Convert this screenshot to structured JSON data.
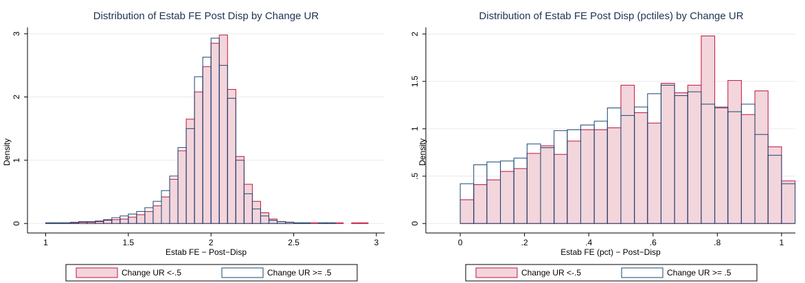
{
  "chart_data": [
    {
      "type": "histogram",
      "title": "Distribution of Estab FE Post Disp by Change UR",
      "x_label": "Estab FE − Post−Disp",
      "y_label": "Density",
      "bins": [
        1.0,
        1.05,
        1.1,
        1.15,
        1.2,
        1.25,
        1.3,
        1.35,
        1.4,
        1.45,
        1.5,
        1.55,
        1.6,
        1.65,
        1.7,
        1.75,
        1.8,
        1.85,
        1.9,
        1.95,
        2.0,
        2.05,
        2.1,
        2.15,
        2.2,
        2.25,
        2.3,
        2.35,
        2.4,
        2.45,
        2.5,
        2.55,
        2.6,
        2.65,
        2.7,
        2.75,
        2.8,
        2.85,
        2.9,
        2.95,
        3.0
      ],
      "series": [
        {
          "name": "Change UR <-.5",
          "color": "#c0143c",
          "fill": "#f3d5dc",
          "values": [
            0.01,
            0.01,
            0.01,
            0.01,
            0.02,
            0.02,
            0.03,
            0.05,
            0.06,
            0.07,
            0.1,
            0.14,
            0.19,
            0.28,
            0.42,
            0.7,
            1.15,
            1.65,
            2.08,
            2.48,
            2.85,
            2.98,
            2.12,
            1.06,
            0.62,
            0.35,
            0.17,
            0.07,
            0.03,
            0.02,
            0.01,
            0.01,
            0.01,
            0.01,
            0.01,
            0.01,
            0,
            0.01,
            0.01,
            0
          ]
        },
        {
          "name": "Change UR >= .5",
          "color": "#1a476f",
          "fill": "none",
          "values": [
            0.01,
            0.01,
            0.01,
            0.02,
            0.03,
            0.03,
            0.04,
            0.06,
            0.09,
            0.12,
            0.15,
            0.19,
            0.25,
            0.35,
            0.52,
            0.75,
            1.2,
            1.5,
            2.32,
            2.63,
            2.93,
            2.5,
            1.98,
            1.0,
            0.47,
            0.23,
            0.12,
            0.05,
            0.03,
            0.02,
            0.01,
            0.01,
            0,
            0.01,
            0.01,
            0,
            0,
            0,
            0,
            0
          ]
        }
      ],
      "xlim": [
        0.89,
        3.05
      ],
      "xticks": [
        1,
        1.5,
        2,
        2.5,
        3
      ],
      "ylim": [
        -0.15,
        3.1
      ],
      "yticks": [
        0,
        1,
        2,
        3
      ],
      "grid": true
    },
    {
      "type": "histogram",
      "title": "Distribution of Estab FE Post Disp (pctiles) by Change UR",
      "x_label": "Estab FE (pct) − Post−Disp",
      "y_label": "Density",
      "bins": [
        0,
        0.042,
        0.083,
        0.125,
        0.167,
        0.208,
        0.25,
        0.292,
        0.333,
        0.375,
        0.417,
        0.458,
        0.5,
        0.542,
        0.583,
        0.625,
        0.667,
        0.708,
        0.75,
        0.792,
        0.833,
        0.875,
        0.917,
        0.958,
        1.0,
        1.042
      ],
      "series": [
        {
          "name": "Change UR <-.5",
          "color": "#c0143c",
          "fill": "#f3d5dc",
          "values": [
            0.25,
            0.41,
            0.46,
            0.55,
            0.58,
            0.74,
            0.82,
            0.73,
            0.87,
            0.99,
            0.99,
            1.01,
            1.46,
            1.17,
            1.06,
            1.48,
            1.38,
            1.46,
            1.98,
            1.22,
            1.51,
            1.15,
            1.4,
            0.81,
            0.45
          ]
        },
        {
          "name": "Change UR >= .5",
          "color": "#1a476f",
          "fill": "none",
          "values": [
            0.42,
            0.62,
            0.65,
            0.66,
            0.69,
            0.84,
            0.8,
            0.98,
            0.99,
            1.04,
            1.08,
            1.22,
            1.14,
            1.23,
            1.37,
            1.46,
            1.35,
            1.39,
            1.26,
            1.23,
            1.18,
            1.26,
            0.94,
            0.72,
            0.42
          ]
        }
      ],
      "xlim": [
        -0.107,
        1.043
      ],
      "xticks": [
        0,
        {
          "value": 0.2,
          "label": ".2"
        },
        {
          "value": 0.4,
          "label": ".4"
        },
        {
          "value": 0.6,
          "label": ".6"
        },
        {
          "value": 0.8,
          "label": ".8"
        },
        1
      ],
      "ylim": [
        -0.1,
        2.07
      ],
      "yticks": [
        0,
        {
          "value": 0.5,
          "label": ".5"
        },
        1,
        {
          "value": 1.5,
          "label": "1.5"
        },
        2
      ],
      "grid": true
    }
  ]
}
